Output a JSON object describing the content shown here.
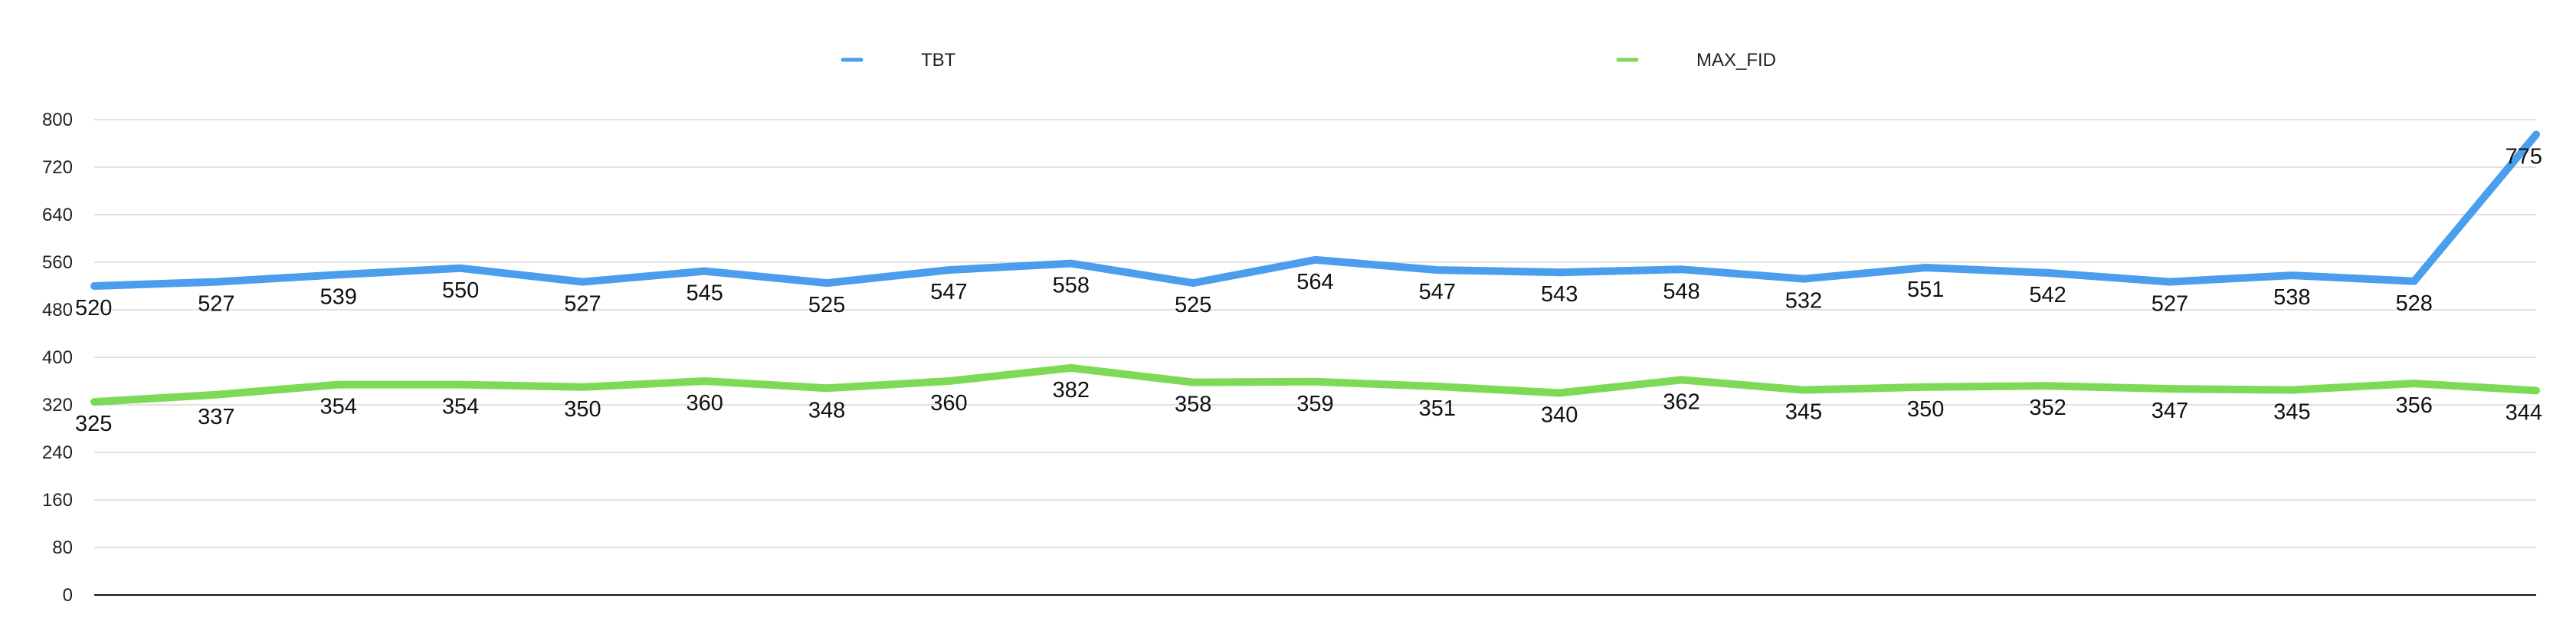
{
  "chart_data": {
    "type": "line",
    "title": "",
    "xlabel": "",
    "ylabel": "",
    "ylim": [
      0,
      800
    ],
    "y_ticks": [
      0,
      80,
      160,
      240,
      320,
      400,
      480,
      560,
      640,
      720,
      800
    ],
    "y_tick_labels": [
      "0",
      "80",
      "160",
      "240",
      "320",
      "400",
      "480",
      "560",
      "640",
      "720",
      "800"
    ],
    "grid": true,
    "legend_position": "top",
    "series": [
      {
        "name": "TBT",
        "color": "#4a9eed",
        "values": [
          520,
          527,
          539,
          550,
          527,
          545,
          525,
          547,
          558,
          525,
          564,
          547,
          543,
          548,
          532,
          551,
          542,
          527,
          538,
          528,
          775
        ],
        "labels": [
          "520",
          "527",
          "539",
          "550",
          "527",
          "545",
          "525",
          "547",
          "558",
          "525",
          "564",
          "547",
          "543",
          "548",
          "532",
          "551",
          "542",
          "527",
          "538",
          "528",
          "775"
        ]
      },
      {
        "name": "MAX_FID",
        "color": "#7ed957",
        "values": [
          325,
          337,
          354,
          354,
          350,
          360,
          348,
          360,
          382,
          358,
          359,
          351,
          340,
          362,
          345,
          350,
          352,
          347,
          345,
          356,
          344
        ],
        "labels": [
          "325",
          "337",
          "354",
          "354",
          "350",
          "360",
          "348",
          "360",
          "382",
          "358",
          "359",
          "351",
          "340",
          "362",
          "345",
          "350",
          "352",
          "347",
          "345",
          "356",
          "344"
        ]
      }
    ]
  }
}
